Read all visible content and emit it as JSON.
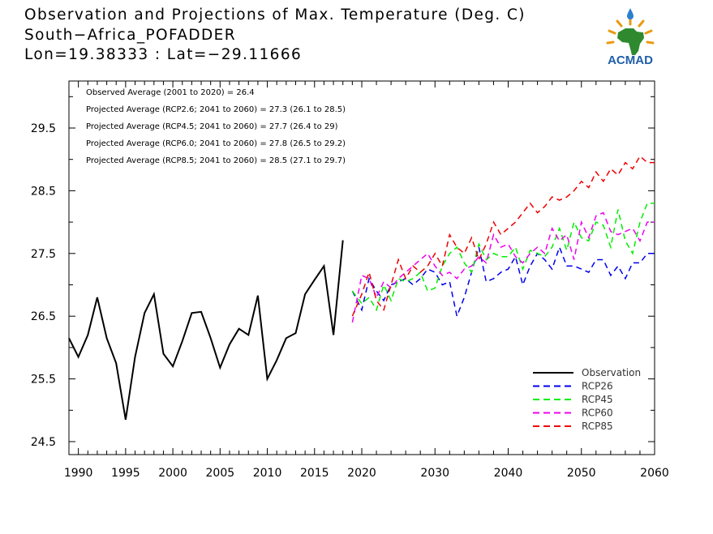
{
  "header": {
    "line1": "Observation and Projections of Max. Temperature (Deg. C)",
    "line2": "South−Africa_POFADDER",
    "line3": "Lon=19.38333 : Lat=−29.11666"
  },
  "logo": {
    "text": "ACMAD",
    "icon": "acmad-africa-logo"
  },
  "colors": {
    "observation": "#000000",
    "rcp26": "#0000ee",
    "rcp45": "#00ee00",
    "rcp60": "#ee00ee",
    "rcp85": "#ee0000"
  },
  "chart_data": {
    "type": "line",
    "xlim": [
      1989,
      2060
    ],
    "ylim": [
      24.3,
      30.3
    ],
    "x_ticks": [
      1990,
      1995,
      2000,
      2005,
      2010,
      2015,
      2020,
      2030,
      2040,
      2050,
      2060
    ],
    "y_ticks": [
      24.5,
      25.5,
      26.5,
      27.5,
      28.5,
      29.5
    ],
    "y_tick_labels": [
      "24.5",
      "25.5",
      "26.5",
      "27.5",
      "28.5",
      "29.5"
    ],
    "grid": false,
    "legend_position": "bottom-right",
    "annotations": [
      "Observed Average (2001 to 2020) = 26.4",
      "Projected Average (RCP2.6; 2041 to 2060) = 27.3 (26.1 to 28.5)",
      "Projected Average (RCP4.5; 2041 to 2060) = 27.7 (26.4 to 29)",
      "Projected Average (RCP6.0; 2041 to 2060) = 27.8 (26.5 to 29.2)",
      "Projected Average (RCP8.5; 2041 to 2060) = 28.5 (27.1 to 29.7)"
    ],
    "series": [
      {
        "name": "Observation",
        "key": "observation",
        "dashed": false,
        "x": [
          1989,
          1990,
          1991,
          1992,
          1993,
          1994,
          1995,
          1996,
          1997,
          1998,
          1999,
          2000,
          2001,
          2002,
          2003,
          2004,
          2005,
          2006,
          2007,
          2008,
          2009,
          2010,
          2011,
          2012,
          2013,
          2014,
          2015,
          2016,
          2017,
          2018,
          2019
        ],
        "values": [
          26.15,
          25.85,
          26.2,
          26.8,
          26.15,
          25.75,
          24.85,
          25.85,
          26.55,
          26.85,
          25.9,
          25.7,
          26.1,
          26.55,
          26.57,
          26.15,
          25.68,
          26.05,
          26.3,
          26.2,
          26.83,
          25.5,
          25.8,
          26.15,
          26.23,
          26.85,
          27.08,
          27.3,
          26.2,
          27.71,
          null
        ]
      },
      {
        "name": "RCP26",
        "key": "rcp26",
        "dashed": true,
        "x": [
          2019,
          2020,
          2021,
          2022,
          2023,
          2024,
          2025,
          2026,
          2027,
          2028,
          2029,
          2030,
          2031,
          2032,
          2033,
          2034,
          2035,
          2036,
          2037,
          2038,
          2039,
          2040,
          2041,
          2042,
          2043,
          2044,
          2045,
          2046,
          2047,
          2048,
          2049,
          2050,
          2051,
          2052,
          2053,
          2054,
          2055,
          2056,
          2057,
          2058,
          2059,
          2060
        ],
        "values": [
          26.9,
          26.6,
          27.1,
          26.9,
          26.75,
          27.0,
          27.05,
          27.1,
          27.0,
          27.1,
          27.25,
          27.2,
          27.0,
          27.05,
          26.5,
          26.8,
          27.2,
          27.6,
          27.05,
          27.1,
          27.2,
          27.25,
          27.45,
          27.0,
          27.3,
          27.5,
          27.4,
          27.25,
          27.6,
          27.3,
          27.3,
          27.25,
          27.2,
          27.4,
          27.4,
          27.15,
          27.3,
          27.1,
          27.35,
          27.35,
          27.5,
          27.5
        ]
      },
      {
        "name": "RCP45",
        "key": "rcp45",
        "dashed": true,
        "x": [
          2019,
          2020,
          2021,
          2022,
          2023,
          2024,
          2025,
          2026,
          2027,
          2028,
          2029,
          2030,
          2031,
          2032,
          2033,
          2034,
          2035,
          2036,
          2037,
          2038,
          2039,
          2040,
          2041,
          2042,
          2043,
          2044,
          2045,
          2046,
          2047,
          2048,
          2049,
          2050,
          2051,
          2052,
          2053,
          2054,
          2055,
          2056,
          2057,
          2058,
          2059,
          2060
        ],
        "values": [
          26.9,
          26.7,
          26.8,
          26.6,
          27.0,
          26.75,
          27.1,
          27.05,
          27.1,
          27.2,
          26.9,
          26.95,
          27.3,
          27.5,
          27.6,
          27.35,
          27.2,
          27.65,
          27.4,
          27.5,
          27.45,
          27.45,
          27.6,
          27.25,
          27.55,
          27.5,
          27.45,
          27.6,
          27.9,
          27.55,
          28.0,
          27.75,
          27.7,
          28.0,
          27.95,
          27.6,
          28.2,
          27.7,
          27.5,
          28.0,
          28.3,
          28.3
        ]
      },
      {
        "name": "RCP60",
        "key": "rcp60",
        "dashed": true,
        "x": [
          2019,
          2020,
          2021,
          2022,
          2023,
          2024,
          2025,
          2026,
          2027,
          2028,
          2029,
          2030,
          2031,
          2032,
          2033,
          2034,
          2035,
          2036,
          2037,
          2038,
          2039,
          2040,
          2041,
          2042,
          2043,
          2044,
          2045,
          2046,
          2047,
          2048,
          2049,
          2050,
          2051,
          2052,
          2053,
          2054,
          2055,
          2056,
          2057,
          2058,
          2059,
          2060
        ],
        "values": [
          26.4,
          27.15,
          27.1,
          26.8,
          27.05,
          26.95,
          27.1,
          27.2,
          27.3,
          27.4,
          27.5,
          27.3,
          27.15,
          27.2,
          27.1,
          27.25,
          27.3,
          27.45,
          27.35,
          27.8,
          27.6,
          27.65,
          27.45,
          27.35,
          27.5,
          27.6,
          27.5,
          27.9,
          27.7,
          27.8,
          27.4,
          28.0,
          27.75,
          28.1,
          28.15,
          27.85,
          27.8,
          27.85,
          27.9,
          27.7,
          28.0,
          28.0
        ]
      },
      {
        "name": "RCP85",
        "key": "rcp85",
        "dashed": true,
        "x": [
          2019,
          2020,
          2021,
          2022,
          2023,
          2024,
          2025,
          2026,
          2027,
          2028,
          2029,
          2030,
          2031,
          2032,
          2033,
          2034,
          2035,
          2036,
          2037,
          2038,
          2039,
          2040,
          2041,
          2042,
          2043,
          2044,
          2045,
          2046,
          2047,
          2048,
          2049,
          2050,
          2051,
          2052,
          2053,
          2054,
          2055,
          2056,
          2057,
          2058,
          2059,
          2060
        ],
        "values": [
          26.5,
          26.85,
          27.2,
          26.75,
          26.6,
          27.0,
          27.4,
          27.1,
          27.3,
          27.2,
          27.3,
          27.5,
          27.3,
          27.8,
          27.6,
          27.5,
          27.75,
          27.4,
          27.65,
          28.0,
          27.8,
          27.9,
          28.0,
          28.15,
          28.3,
          28.15,
          28.25,
          28.4,
          28.35,
          28.4,
          28.5,
          28.65,
          28.55,
          28.8,
          28.65,
          28.85,
          28.75,
          28.95,
          28.85,
          29.05,
          28.95,
          28.95
        ]
      }
    ]
  }
}
